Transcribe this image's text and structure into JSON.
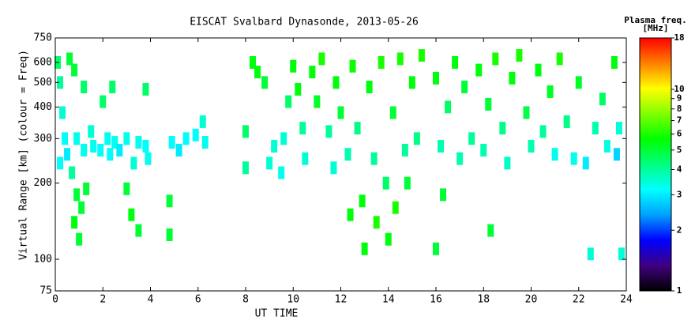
{
  "chart_data": {
    "type": "scatter",
    "title": "EISCAT Svalbard Dynasonde, 2013-05-26",
    "x_label": "UT TIME",
    "y_label": "Virtual Range [km] (colour = Freq)",
    "xlim": [
      0,
      24
    ],
    "xticks": [
      0,
      2,
      4,
      6,
      8,
      10,
      12,
      14,
      16,
      18,
      20,
      22,
      24
    ],
    "ylim": [
      75,
      750
    ],
    "yticks": [
      75,
      100,
      200,
      300,
      400,
      500,
      600,
      750
    ],
    "ylog": true,
    "grid": false,
    "colorbar": {
      "label": [
        "Plasma freq.",
        "[MHz]"
      ],
      "lim": [
        1,
        18
      ],
      "ticks": [
        1,
        2,
        3,
        4,
        5,
        6,
        7,
        8,
        9,
        10,
        18
      ],
      "log": true,
      "colormap": [
        "#000000",
        "#400080",
        "#0000ff",
        "#00a0ff",
        "#00ffff",
        "#00ff80",
        "#00ff00",
        "#80ff00",
        "#ffff00",
        "#ff8000",
        "#ff0000"
      ]
    },
    "x": [
      0.1,
      0.2,
      0.3,
      0.4,
      0.5,
      0.2,
      0.6,
      0.8,
      0.7,
      0.9,
      0.8,
      1.0,
      1.1,
      0.9,
      1.2,
      1.3,
      1.5,
      1.6,
      1.2,
      1.9,
      2.0,
      2.2,
      2.3,
      2.5,
      2.4,
      2.7,
      3.0,
      3.0,
      3.2,
      3.3,
      3.5,
      3.5,
      3.8,
      3.8,
      3.9,
      4.8,
      4.8,
      4.9,
      5.2,
      5.5,
      5.9,
      6.3,
      6.2,
      8.0,
      8.0,
      8.3,
      8.5,
      8.8,
      9.0,
      9.2,
      9.5,
      9.6,
      9.8,
      10.0,
      10.2,
      10.4,
      10.5,
      10.8,
      11.0,
      11.2,
      11.5,
      11.7,
      11.8,
      12.0,
      12.3,
      12.4,
      12.5,
      12.7,
      12.9,
      13.0,
      13.2,
      13.4,
      13.5,
      13.7,
      13.9,
      14.0,
      14.2,
      14.3,
      14.5,
      14.7,
      14.8,
      15.0,
      15.2,
      15.4,
      16.0,
      16.0,
      16.2,
      16.3,
      16.5,
      16.8,
      17.0,
      17.2,
      17.5,
      17.8,
      18.0,
      18.3,
      18.2,
      18.5,
      18.8,
      19.0,
      19.2,
      19.5,
      19.8,
      20.0,
      20.3,
      20.5,
      20.8,
      21.0,
      21.2,
      21.5,
      21.8,
      22.0,
      22.3,
      22.5,
      22.7,
      23.0,
      23.2,
      23.5,
      23.6,
      23.7,
      23.8
    ],
    "y": [
      600,
      500,
      380,
      300,
      260,
      240,
      620,
      560,
      220,
      180,
      140,
      120,
      160,
      300,
      270,
      190,
      320,
      280,
      480,
      270,
      420,
      300,
      260,
      290,
      480,
      270,
      300,
      190,
      150,
      240,
      130,
      290,
      280,
      470,
      250,
      170,
      125,
      290,
      270,
      300,
      310,
      290,
      350,
      230,
      320,
      600,
      550,
      500,
      240,
      280,
      220,
      300,
      420,
      580,
      470,
      330,
      250,
      550,
      420,
      620,
      320,
      230,
      500,
      380,
      260,
      150,
      580,
      330,
      170,
      110,
      480,
      250,
      140,
      600,
      200,
      120,
      380,
      160,
      620,
      270,
      200,
      500,
      300,
      640,
      520,
      110,
      280,
      180,
      400,
      600,
      250,
      480,
      300,
      560,
      270,
      130,
      410,
      620,
      330,
      240,
      520,
      640,
      380,
      280,
      560,
      320,
      460,
      260,
      620,
      350,
      250,
      500,
      240,
      105,
      330,
      430,
      280,
      600,
      260,
      330,
      105
    ],
    "values": [
      4.5,
      4,
      3.5,
      3.2,
      3,
      3.2,
      5,
      5,
      4,
      5,
      5.5,
      5,
      5,
      3.3,
      3.3,
      5,
      3.5,
      3.3,
      4.5,
      3.2,
      4.5,
      3.3,
      3.2,
      3.3,
      4.5,
      3,
      3.3,
      5,
      5.5,
      3.5,
      5,
      3.3,
      3.2,
      4.5,
      3.3,
      5,
      5,
      3.2,
      3,
      3.2,
      3.2,
      3.3,
      3.5,
      4,
      4.5,
      5.5,
      5.5,
      5,
      3.5,
      3.5,
      3.3,
      3.5,
      4.5,
      5.5,
      5.5,
      4,
      3.5,
      5.5,
      5.2,
      6,
      4,
      3.5,
      5.5,
      5,
      3.8,
      5.5,
      5.8,
      4.2,
      5.5,
      5.5,
      5.5,
      4,
      6,
      6,
      4.5,
      5.5,
      5,
      6,
      6,
      4,
      5,
      5.5,
      4.2,
      6,
      5.5,
      5,
      3.8,
      5,
      4.5,
      5.5,
      3.8,
      5,
      4,
      5.5,
      3.8,
      5,
      5,
      6,
      4.2,
      3.6,
      5.5,
      6,
      4.8,
      3.8,
      5.5,
      4,
      5.2,
      3.3,
      6,
      4.2,
      3.3,
      5.2,
      3,
      3.5,
      3.8,
      4.5,
      3.4,
      5.5,
      2.8,
      3.5,
      3.5
    ]
  }
}
